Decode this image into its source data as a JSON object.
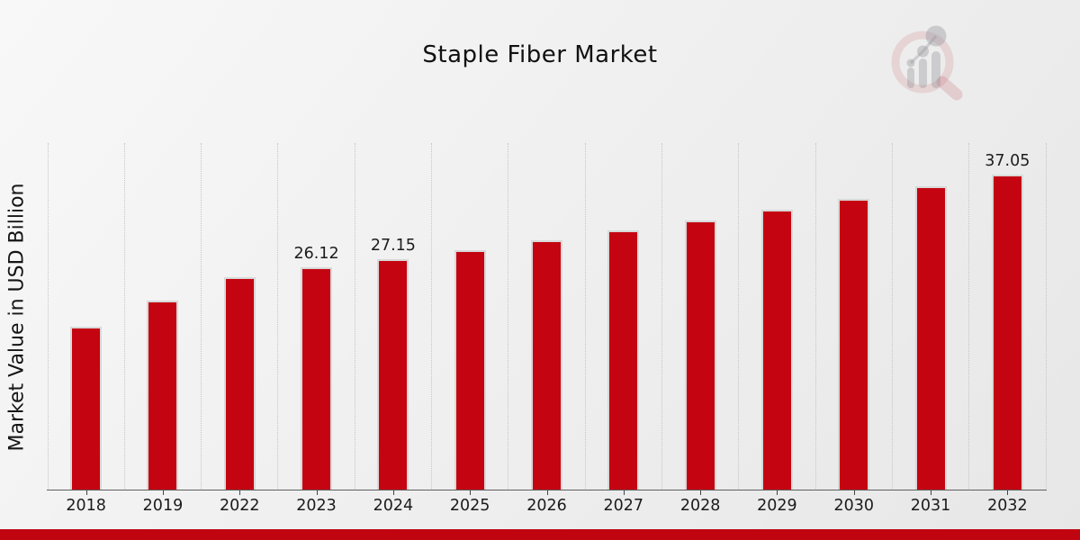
{
  "header": {
    "title": "Staple Fiber Market"
  },
  "watermark": {
    "icon": "magnifier-bar-chart-logo"
  },
  "chart_data": {
    "type": "bar",
    "title": "Staple Fiber Market",
    "xlabel": "",
    "ylabel": "Market Value in USD Billion",
    "ylim": [
      0,
      40.7
    ],
    "grid": "vertical-dotted",
    "legend": "none",
    "bar_color": "#c40511",
    "bar_edge_color": "#d8d8d8",
    "accent_color": "#c00511",
    "categories": [
      "2018",
      "2019",
      "2022",
      "2023",
      "2024",
      "2025",
      "2026",
      "2027",
      "2028",
      "2029",
      "2030",
      "2031",
      "2032"
    ],
    "values": [
      19.2,
      22.2,
      25.0,
      26.12,
      27.15,
      28.1,
      29.3,
      30.5,
      31.65,
      32.95,
      34.2,
      35.6,
      37.05
    ],
    "data_labels": [
      "",
      "",
      "",
      "26.12",
      "27.15",
      "",
      "",
      "",
      "",
      "",
      "",
      "",
      "37.05"
    ]
  }
}
